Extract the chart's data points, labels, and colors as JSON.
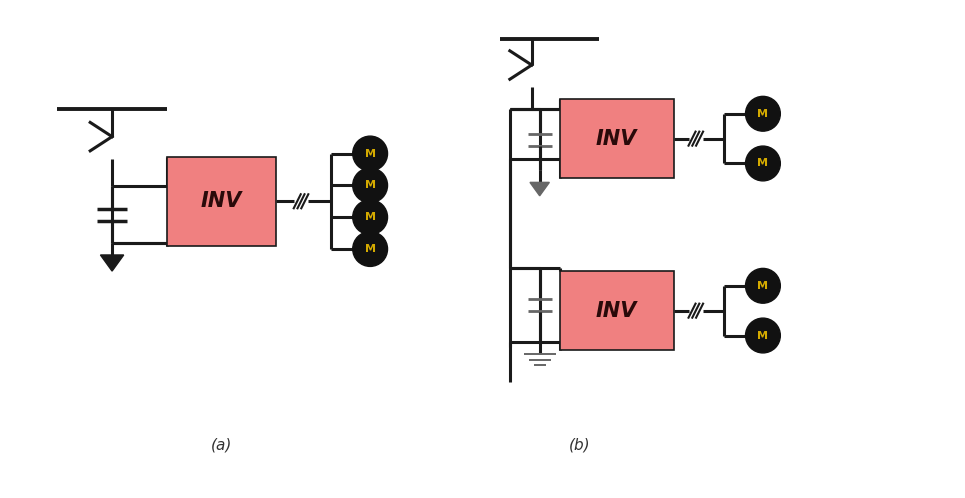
{
  "bg_color": "#ffffff",
  "inv_color": "#f08080",
  "motor_color": "#111111",
  "motor_text_color": "#d4aa00",
  "line_color": "#1a1a1a",
  "line_color_gray": "#666666",
  "label_a": "(a)",
  "label_b": "(b)",
  "inv_text": "INV",
  "motor_text": "M",
  "fig_width": 9.65,
  "fig_height": 4.98
}
